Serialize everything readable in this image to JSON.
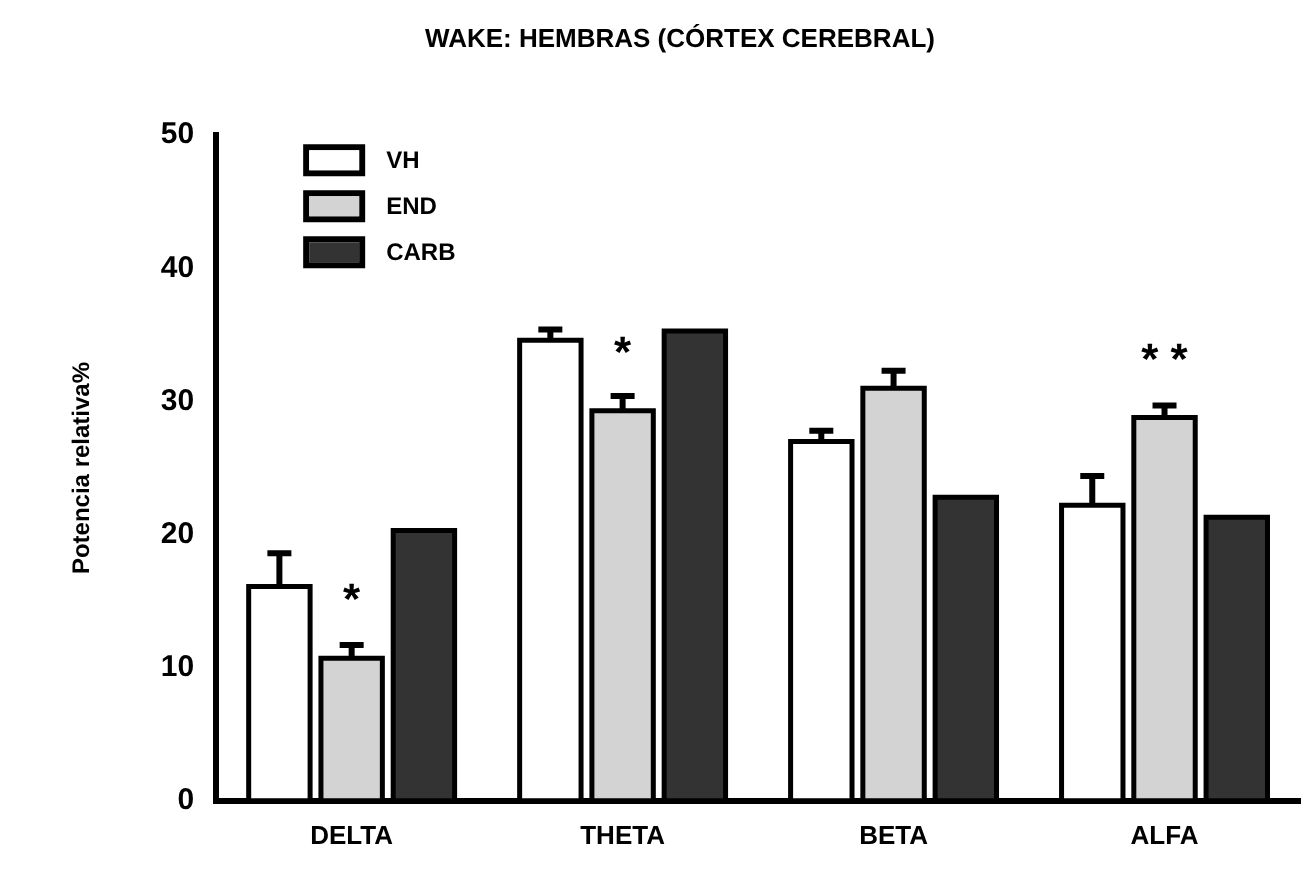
{
  "chart_data": {
    "type": "bar",
    "title": "WAKE: HEMBRAS (CÓRTEX CEREBRAL)",
    "ylabel": "Potencia relativa%",
    "categories": [
      "DELTA",
      "THETA",
      "BETA",
      "ALFA"
    ],
    "series": [
      {
        "name": "VH",
        "color": "#ffffff",
        "values": [
          16.1,
          34.6,
          27.0,
          22.2
        ],
        "errors": [
          2.5,
          0.8,
          0.8,
          2.2
        ]
      },
      {
        "name": "END",
        "color": "#d3d3d3",
        "values": [
          10.7,
          29.3,
          31.0,
          28.8
        ],
        "errors": [
          1.0,
          1.1,
          1.3,
          0.9
        ]
      },
      {
        "name": "CARB",
        "color": "#333333",
        "values": [
          20.3,
          35.3,
          22.8,
          21.3
        ]
      }
    ],
    "annotations": [
      {
        "text": "*",
        "x": "DELTA",
        "y": 10.7
      },
      {
        "text": "*",
        "x": "THETA",
        "y": 29.3
      },
      {
        "text": "* *",
        "x": "ALFA",
        "y": 28.8
      }
    ],
    "ylim": [
      0,
      50
    ],
    "yticks": [
      0,
      10,
      20,
      30,
      40,
      50
    ],
    "legend": "top left"
  }
}
